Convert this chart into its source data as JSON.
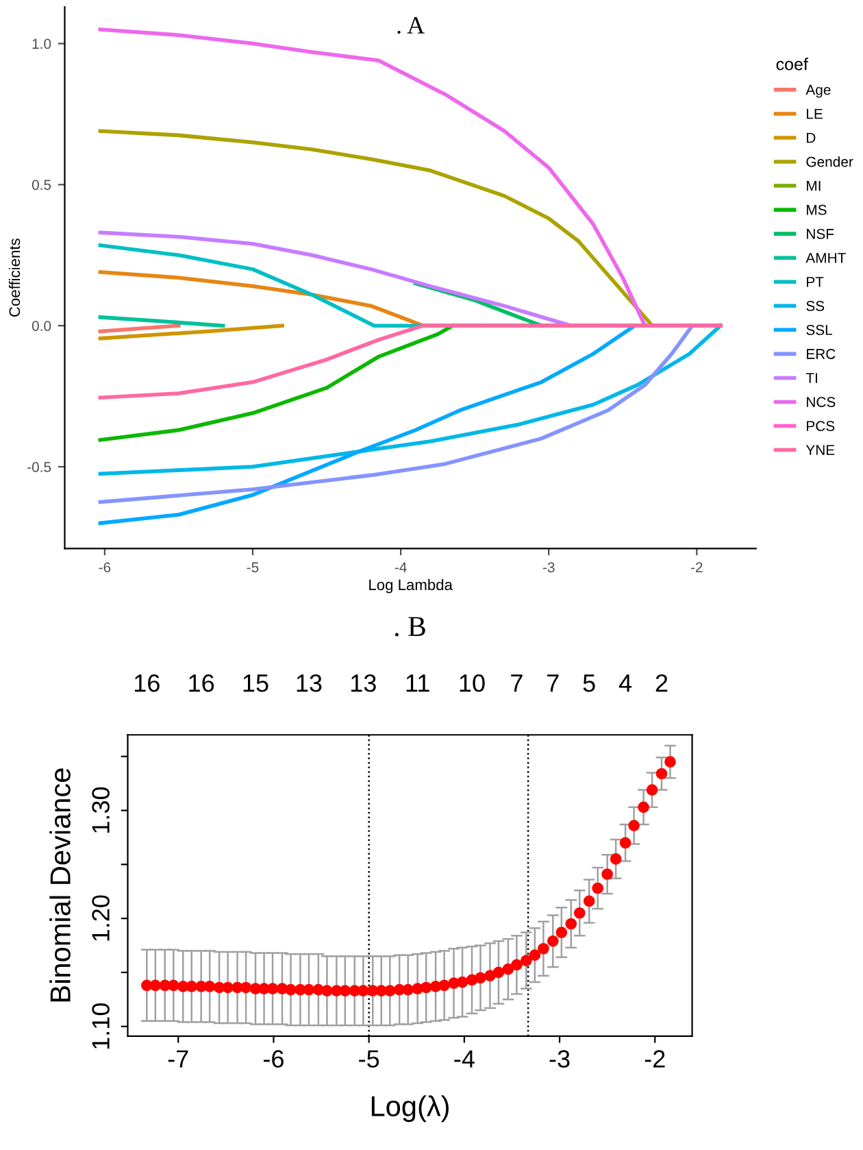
{
  "chart_data": [
    {
      "type": "line",
      "title": ". A",
      "xlabel": "Log Lambda",
      "ylabel": "Coefficients",
      "legend_title": "coef",
      "legend": "right",
      "grid": false,
      "xlim": [
        -6.27,
        -1.6
      ],
      "ylim": [
        -0.79,
        1.13
      ],
      "xticks": [
        -6,
        -5,
        -4,
        -3,
        -2
      ],
      "yticks": [
        {
          "value": -0.5,
          "label": "-0.5"
        },
        {
          "value": 0,
          "label": "0.0"
        },
        {
          "value": 0.5,
          "label": "0.5"
        },
        {
          "value": 1.0,
          "label": "1.0"
        }
      ],
      "series": [
        {
          "name": "Age",
          "color": "#f8766d",
          "x": [
            -6.03,
            -5.5
          ],
          "values": [
            -0.02,
            0
          ]
        },
        {
          "name": "LE",
          "color": "#e68613",
          "x": [
            -6.03,
            -5.5,
            -5,
            -4.6,
            -4.2,
            -3.85,
            -1.84
          ],
          "values": [
            0.19,
            0.17,
            0.14,
            0.11,
            0.07,
            0,
            0
          ]
        },
        {
          "name": "D",
          "color": "#cd9600",
          "x": [
            -6.03,
            -5.3,
            -4.8
          ],
          "values": [
            -0.045,
            -0.02,
            0
          ]
        },
        {
          "name": "Gender",
          "color": "#aba300",
          "x": [
            -6.03,
            -5.5,
            -5,
            -4.6,
            -4.2,
            -3.8,
            -3.3,
            -3,
            -2.8,
            -2.55,
            -2.3,
            -1.84
          ],
          "values": [
            0.69,
            0.675,
            0.65,
            0.625,
            0.59,
            0.55,
            0.46,
            0.38,
            0.3,
            0.15,
            0,
            0
          ]
        },
        {
          "name": "MI",
          "color": "#7cae00"
        },
        {
          "name": "MS",
          "color": "#0cb702",
          "x": [
            -6.03,
            -5.5,
            -5,
            -4.5,
            -4.15,
            -3.9,
            -3.75,
            -3.65,
            -1.84
          ],
          "values": [
            -0.405,
            -0.37,
            -0.31,
            -0.22,
            -0.11,
            -0.06,
            -0.03,
            0,
            0
          ]
        },
        {
          "name": "NSF",
          "color": "#00be67",
          "x": [
            -3.9,
            -3.5,
            -3.05
          ],
          "values": [
            0.15,
            0.09,
            0
          ]
        },
        {
          "name": "AMHT",
          "color": "#00c19a",
          "x": [
            -6.03,
            -5.6,
            -5.2
          ],
          "values": [
            0.03,
            0.015,
            0
          ]
        },
        {
          "name": "PT",
          "color": "#00bfc4",
          "x": [
            -6.03,
            -5.5,
            -5,
            -4.6,
            -4.18,
            -1.84
          ],
          "values": [
            0.285,
            0.25,
            0.2,
            0.11,
            0,
            0
          ]
        },
        {
          "name": "SS",
          "color": "#00b8e7",
          "x": [
            -6.03,
            -5,
            -4.2,
            -3.8,
            -3.2,
            -2.7,
            -2.4,
            -2.05,
            -1.84
          ],
          "values": [
            -0.525,
            -0.5,
            -0.44,
            -0.41,
            -0.35,
            -0.28,
            -0.21,
            -0.1,
            0
          ]
        },
        {
          "name": "SSL",
          "color": "#00a9ff",
          "x": [
            -6.03,
            -5.5,
            -5,
            -4.3,
            -3.9,
            -3.6,
            -3.05,
            -2.7,
            -2.42,
            -1.84
          ],
          "values": [
            -0.7,
            -0.67,
            -0.6,
            -0.45,
            -0.37,
            -0.3,
            -0.2,
            -0.1,
            0,
            0
          ]
        },
        {
          "name": "ERC",
          "color": "#8494ff",
          "x": [
            -6.03,
            -5,
            -4.2,
            -3.7,
            -3.05,
            -2.6,
            -2.35,
            -2.17,
            -2.03,
            -1.84
          ],
          "values": [
            -0.625,
            -0.58,
            -0.53,
            -0.49,
            -0.4,
            -0.3,
            -0.21,
            -0.1,
            0,
            0
          ]
        },
        {
          "name": "TI",
          "color": "#c77cff",
          "x": [
            -6.03,
            -5.5,
            -5,
            -4.6,
            -4.2,
            -3.8,
            -3.3,
            -2.85,
            -1.84
          ],
          "values": [
            0.33,
            0.315,
            0.29,
            0.25,
            0.2,
            0.14,
            0.07,
            0,
            0
          ]
        },
        {
          "name": "NCS",
          "color": "#ed68ed",
          "x": [
            -6.03,
            -5.5,
            -5,
            -4.6,
            -4.15,
            -3.7,
            -3.3,
            -3,
            -2.7,
            -2.5,
            -2.35,
            -1.84
          ],
          "values": [
            1.05,
            1.03,
            1.0,
            0.97,
            0.94,
            0.82,
            0.69,
            0.56,
            0.36,
            0.17,
            0,
            0
          ]
        },
        {
          "name": "PCS",
          "color": "#ff61cc"
        },
        {
          "name": "YNE",
          "color": "#ff68a1",
          "x": [
            -6.03,
            -5.5,
            -5,
            -4.5,
            -4.15,
            -3.85,
            -1.84
          ],
          "values": [
            -0.255,
            -0.24,
            -0.2,
            -0.12,
            -0.05,
            0,
            0
          ]
        }
      ]
    },
    {
      "type": "scatter",
      "title": ". B",
      "xlabel": "Log(λ)",
      "ylabel": "Binomial Deviance",
      "color": "#ff0000",
      "marker": "circle",
      "grid": false,
      "xlim": [
        -7.53,
        -1.61
      ],
      "ylim": [
        1.091,
        1.37
      ],
      "xticks": [
        -7,
        -6,
        -5,
        -4,
        -3,
        -2
      ],
      "yticks": [
        {
          "value": 1.1,
          "label": "1.10"
        },
        {
          "value": 1.15,
          "label": null
        },
        {
          "value": 1.2,
          "label": "1.20"
        },
        {
          "value": 1.25,
          "label": null
        },
        {
          "value": 1.3,
          "label": "1.30"
        },
        {
          "value": 1.35,
          "label": null
        }
      ],
      "annotations": [
        "16",
        "16",
        "15",
        "13",
        "13",
        "11",
        "10",
        "7",
        "7",
        "5",
        "4",
        "2"
      ],
      "ref_lines": [
        {
          "axis": "x",
          "value": -5.0,
          "color": "#000000",
          "line_style": "dotted"
        },
        {
          "axis": "x",
          "value": -3.33,
          "color": "#000000",
          "line_style": "dotted"
        }
      ],
      "x": [
        -7.33,
        -7.24,
        -7.14,
        -7.05,
        -6.95,
        -6.86,
        -6.76,
        -6.67,
        -6.57,
        -6.48,
        -6.38,
        -6.29,
        -6.19,
        -6.1,
        -6.01,
        -5.91,
        -5.82,
        -5.72,
        -5.63,
        -5.53,
        -5.44,
        -5.34,
        -5.25,
        -5.15,
        -5.06,
        -4.96,
        -4.87,
        -4.78,
        -4.68,
        -4.59,
        -4.49,
        -4.4,
        -4.3,
        -4.21,
        -4.11,
        -4.02,
        -3.92,
        -3.83,
        -3.73,
        -3.64,
        -3.54,
        -3.45,
        -3.35,
        -3.26,
        -3.17,
        -3.07,
        -2.98,
        -2.88,
        -2.79,
        -2.69,
        -2.6,
        -2.5,
        -2.41,
        -2.31,
        -2.22,
        -2.12,
        -2.03,
        -1.93,
        -1.84
      ],
      "values": [
        1.138,
        1.138,
        1.138,
        1.138,
        1.137,
        1.137,
        1.137,
        1.137,
        1.136,
        1.136,
        1.136,
        1.136,
        1.135,
        1.135,
        1.135,
        1.135,
        1.134,
        1.134,
        1.134,
        1.134,
        1.133,
        1.133,
        1.133,
        1.133,
        1.133,
        1.133,
        1.133,
        1.133,
        1.134,
        1.134,
        1.135,
        1.136,
        1.137,
        1.138,
        1.14,
        1.141,
        1.143,
        1.145,
        1.147,
        1.15,
        1.153,
        1.157,
        1.161,
        1.166,
        1.172,
        1.179,
        1.187,
        1.195,
        1.205,
        1.216,
        1.228,
        1.241,
        1.255,
        1.27,
        1.286,
        1.303,
        1.319,
        1.334,
        1.345
      ],
      "errors": [
        0.033,
        0.033,
        0.033,
        0.033,
        0.033,
        0.033,
        0.033,
        0.033,
        0.033,
        0.033,
        0.033,
        0.033,
        0.033,
        0.033,
        0.033,
        0.033,
        0.033,
        0.033,
        0.033,
        0.033,
        0.032,
        0.032,
        0.032,
        0.032,
        0.032,
        0.032,
        0.032,
        0.032,
        0.032,
        0.032,
        0.032,
        0.032,
        0.032,
        0.032,
        0.032,
        0.032,
        0.031,
        0.03,
        0.03,
        0.029,
        0.028,
        0.027,
        0.026,
        0.025,
        0.025,
        0.024,
        0.023,
        0.022,
        0.021,
        0.02,
        0.019,
        0.018,
        0.018,
        0.017,
        0.017,
        0.016,
        0.016,
        0.015,
        0.015
      ]
    }
  ]
}
